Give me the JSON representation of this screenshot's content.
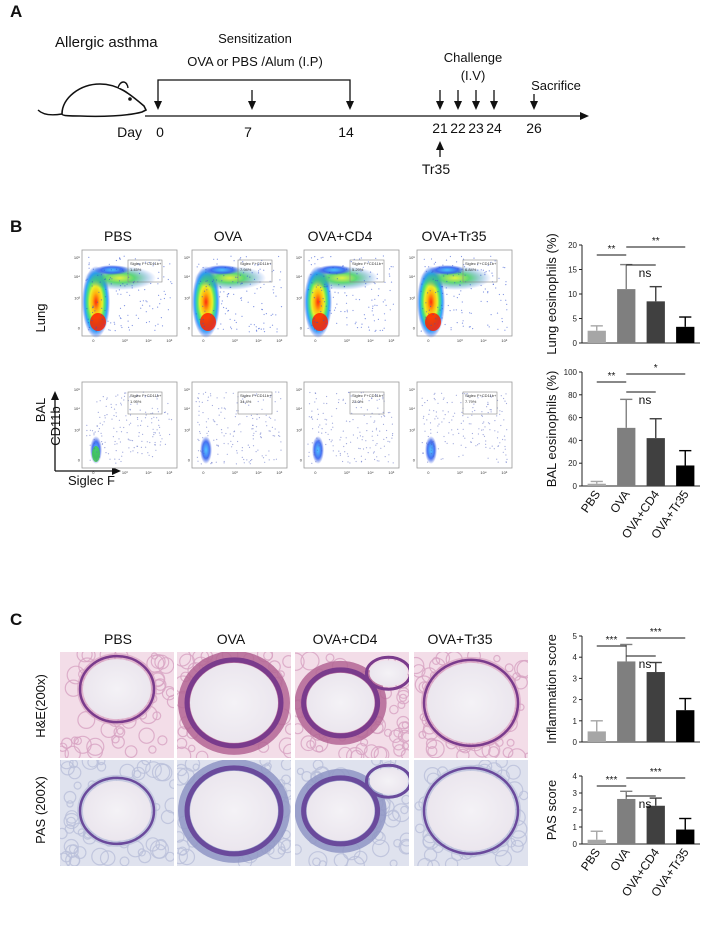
{
  "panelA": {
    "letter": "A",
    "model": "Allergic asthma",
    "sensitization": {
      "title": "Sensitization",
      "subtitle": "OVA or PBS /Alum (I.P)"
    },
    "challenge": {
      "title": "Challenge",
      "subtitle": "(I.V)"
    },
    "sacrifice": "Sacrifice",
    "day_label": "Day",
    "days": [
      "0",
      "7",
      "14",
      "21",
      "22",
      "23",
      "24",
      "26"
    ],
    "treatment": "Tr35"
  },
  "panelB": {
    "letter": "B",
    "groups": [
      "PBS",
      "OVA",
      "OVA+CD4",
      "OVA+Tr35"
    ],
    "rows": [
      "Lung",
      "BAL"
    ],
    "gate_label": "Siglec F+CD11b+",
    "lung_gate_values": [
      "1.45%",
      "7.94%",
      "5.29%",
      "6.84%"
    ],
    "bal_gate_values": [
      "1.95%",
      "34.4%",
      "23.0%",
      "7.79%"
    ],
    "y_axis": "CD11b",
    "x_axis": "Siglec F",
    "flow_ticks": [
      "0",
      "10³",
      "10⁴",
      "10⁵"
    ]
  },
  "panelC": {
    "letter": "C",
    "groups": [
      "PBS",
      "OVA",
      "OVA+CD4",
      "OVA+Tr35"
    ],
    "rows": [
      "H&E(200x)",
      "PAS (200X)"
    ]
  },
  "colors": {
    "PBS": "#a6a6a6",
    "OVA": "#7f7f7f",
    "OVA+CD4": "#404040",
    "OVA+Tr35": "#000000"
  },
  "chart_data": [
    {
      "type": "bar",
      "ylabel": "Lung eosinophils (%)",
      "categories": [
        "PBS",
        "OVA",
        "OVA+CD4",
        "OVA+Tr35"
      ],
      "values": [
        2.5,
        11,
        8.5,
        3.3
      ],
      "errors": [
        1,
        5,
        3,
        2
      ],
      "ylim": [
        0,
        20
      ],
      "yticks": [
        0,
        5,
        10,
        15,
        20
      ],
      "significance": [
        {
          "from": "PBS",
          "to": "OVA",
          "label": "**"
        },
        {
          "from": "OVA",
          "to": "OVA+CD4",
          "label": "ns"
        },
        {
          "from": "OVA",
          "to": "OVA+Tr35",
          "label": "**"
        }
      ]
    },
    {
      "type": "bar",
      "ylabel": "BAL eosinophils (%)",
      "categories": [
        "PBS",
        "OVA",
        "OVA+CD4",
        "OVA+Tr35"
      ],
      "values": [
        2,
        51,
        42,
        18
      ],
      "errors": [
        2,
        25,
        17,
        13
      ],
      "ylim": [
        0,
        100
      ],
      "yticks": [
        0,
        20,
        40,
        60,
        80,
        100
      ],
      "significance": [
        {
          "from": "PBS",
          "to": "OVA",
          "label": "**"
        },
        {
          "from": "OVA",
          "to": "OVA+CD4",
          "label": "ns"
        },
        {
          "from": "OVA",
          "to": "OVA+Tr35",
          "label": "*"
        }
      ]
    },
    {
      "type": "bar",
      "ylabel": "Inflammation score",
      "categories": [
        "PBS",
        "OVA",
        "OVA+CD4",
        "OVA+Tr35"
      ],
      "values": [
        0.5,
        3.8,
        3.3,
        1.5
      ],
      "errors": [
        0.5,
        0.8,
        0.45,
        0.55
      ],
      "ylim": [
        0,
        5
      ],
      "yticks": [
        0,
        1,
        2,
        3,
        4,
        5
      ],
      "significance": [
        {
          "from": "PBS",
          "to": "OVA",
          "label": "***"
        },
        {
          "from": "OVA",
          "to": "OVA+CD4",
          "label": "ns"
        },
        {
          "from": "OVA",
          "to": "OVA+Tr35",
          "label": "***"
        }
      ]
    },
    {
      "type": "bar",
      "ylabel": "PAS score",
      "categories": [
        "PBS",
        "OVA",
        "OVA+CD4",
        "OVA+Tr35"
      ],
      "values": [
        0.25,
        2.65,
        2.25,
        0.85
      ],
      "errors": [
        0.5,
        0.45,
        0.45,
        0.65
      ],
      "ylim": [
        0,
        4
      ],
      "yticks": [
        0,
        1,
        2,
        3,
        4
      ],
      "significance": [
        {
          "from": "PBS",
          "to": "OVA",
          "label": "***"
        },
        {
          "from": "OVA",
          "to": "OVA+CD4",
          "label": "ns"
        },
        {
          "from": "OVA",
          "to": "OVA+Tr35",
          "label": "***"
        }
      ]
    }
  ]
}
